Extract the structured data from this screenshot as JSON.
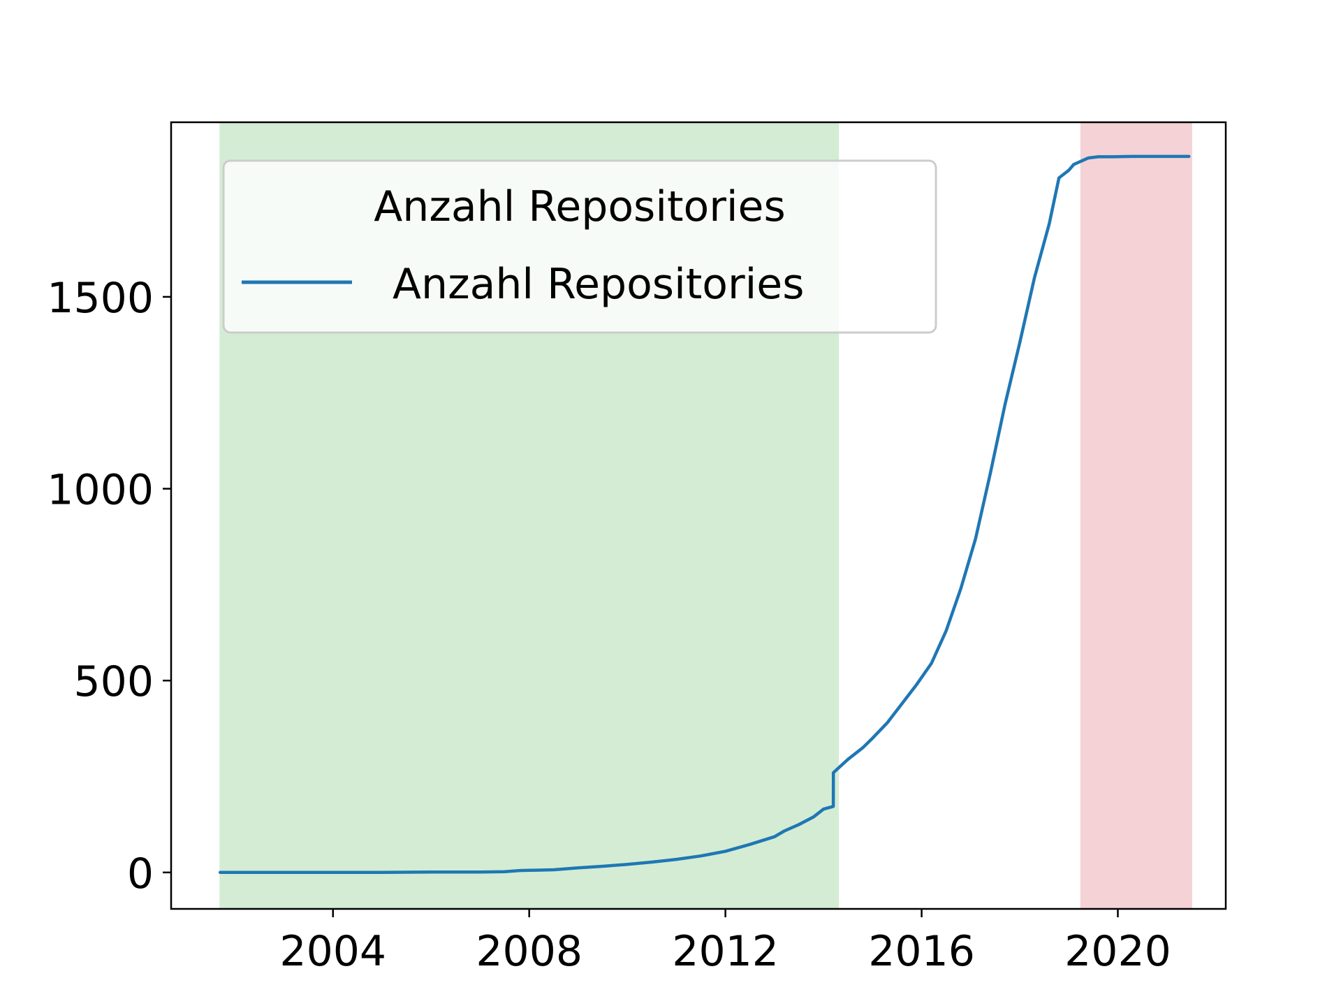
{
  "chart_data": {
    "type": "line",
    "title": "",
    "xlabel": "",
    "ylabel": "",
    "xlim": [
      2000.7,
      2022.2
    ],
    "ylim": [
      -95,
      1955
    ],
    "x_ticks": [
      2004,
      2008,
      2012,
      2016,
      2020
    ],
    "y_ticks": [
      0,
      500,
      1000,
      1500
    ],
    "grid": false,
    "legend": {
      "title": "Anzahl Repositories",
      "placement": "top-left"
    },
    "shaded_regions": [
      {
        "x_start": 2001.7,
        "x_end": 2014.3,
        "color": "#d4ecd4"
      },
      {
        "x_start": 2019.25,
        "x_end": 2021.5,
        "color": "#f5d2d6"
      }
    ],
    "series": [
      {
        "name": "Anzahl Repositories",
        "color": "#1f77b4",
        "x": [
          2001.7,
          2003.0,
          2004.0,
          2005.0,
          2006.0,
          2007.0,
          2007.5,
          2007.8,
          2008.5,
          2009.0,
          2009.5,
          2010.0,
          2010.5,
          2011.0,
          2011.5,
          2012.0,
          2012.5,
          2013.0,
          2013.2,
          2013.5,
          2013.8,
          2014.0,
          2014.2,
          2014.201,
          2014.5,
          2014.8,
          2015.0,
          2015.3,
          2015.6,
          2015.9,
          2016.2,
          2016.5,
          2016.8,
          2017.1,
          2017.4,
          2017.7,
          2018.0,
          2018.3,
          2018.6,
          2018.8,
          2019.0,
          2019.1,
          2019.4,
          2019.6,
          2019.9,
          2020.3,
          2021.0,
          2021.45
        ],
        "y": [
          0,
          0,
          0,
          0,
          1,
          1,
          2,
          5,
          7,
          12,
          16,
          21,
          27,
          34,
          43,
          55,
          73,
          93,
          108,
          125,
          145,
          165,
          172,
          260,
          295,
          325,
          350,
          390,
          440,
          490,
          545,
          630,
          740,
          870,
          1040,
          1220,
          1380,
          1550,
          1690,
          1810,
          1830,
          1845,
          1862,
          1865,
          1865,
          1866,
          1866,
          1866
        ]
      }
    ]
  }
}
